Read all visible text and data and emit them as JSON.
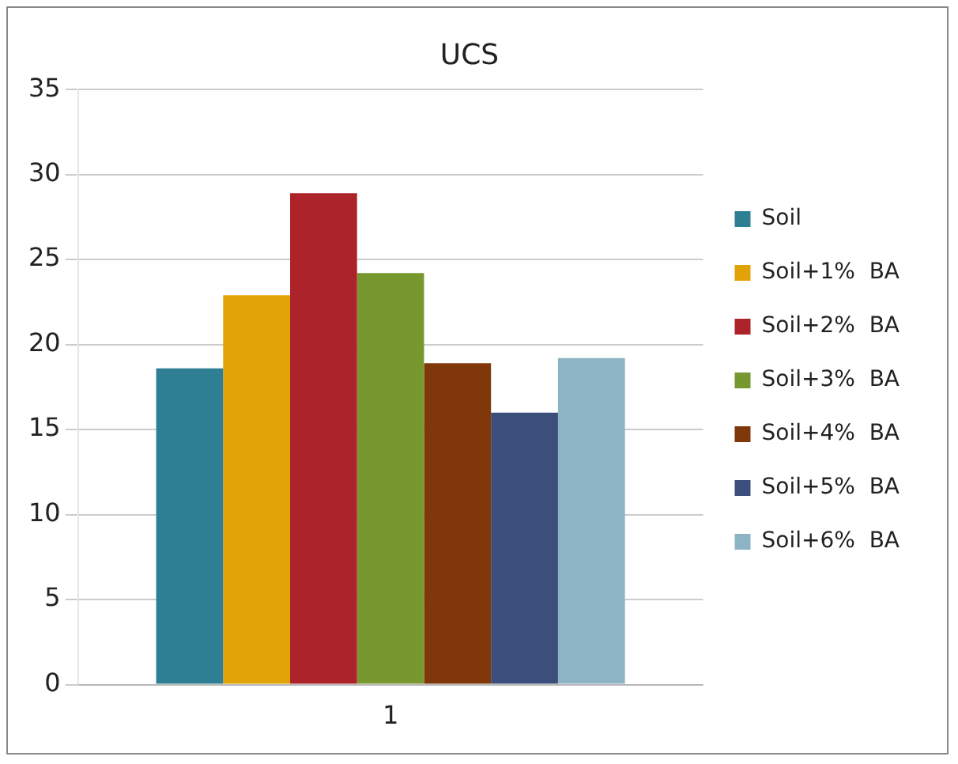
{
  "chart_data": {
    "type": "bar",
    "title": "UCS",
    "categories": [
      "1"
    ],
    "series": [
      {
        "name": "Soil",
        "color": "#2e7f93",
        "values": [
          18.6
        ]
      },
      {
        "name": "Soil+1%  BA",
        "color": "#e2a308",
        "values": [
          22.9
        ]
      },
      {
        "name": "Soil+2%  BA",
        "color": "#ac242a",
        "values": [
          28.9
        ]
      },
      {
        "name": "Soil+3%  BA",
        "color": "#76982e",
        "values": [
          24.2
        ]
      },
      {
        "name": "Soil+4%  BA",
        "color": "#80380a",
        "values": [
          18.9
        ]
      },
      {
        "name": "Soil+5%  BA",
        "color": "#3c4f7c",
        "values": [
          16.0
        ]
      },
      {
        "name": "Soil+6%  BA",
        "color": "#8db4c4",
        "values": [
          19.2
        ]
      }
    ],
    "ylim": [
      0,
      35
    ],
    "yticks": [
      0,
      5,
      10,
      15,
      20,
      25,
      30,
      35
    ],
    "grid": "y",
    "legend": "right"
  }
}
